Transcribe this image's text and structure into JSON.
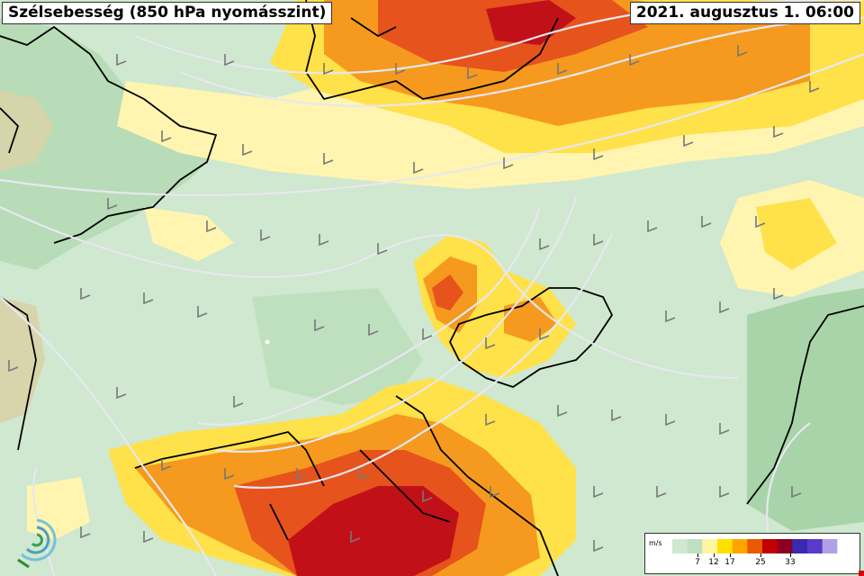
{
  "map": {
    "title": "Szélsebesség (850 hPa nyomásszint)",
    "datetime": "2021. augusztus 1. 06:00"
  },
  "legend": {
    "unit": "m/s",
    "ticks": [
      "7",
      "12",
      "17",
      "25",
      "33"
    ],
    "colors": [
      "#cfe8cf",
      "#bfe0bf",
      "#fff5a0",
      "#ffe000",
      "#ffa500",
      "#e85a00",
      "#c00000",
      "#8b0020",
      "#3a2ab0",
      "#5a3ac8",
      "#b0a0e8",
      "#ffffff"
    ]
  },
  "colors": {
    "land_green": "#a9d4a9",
    "light_green": "#cfe8cf",
    "sea_tan": "#d8d3a8",
    "pale_yellow": "#fff5b0",
    "yellow": "#ffe14a",
    "orange": "#f59a1e",
    "red_orange": "#e6531c",
    "dark_red": "#c21018",
    "border_black": "#000000",
    "isobar_white": "#e8e8f0"
  }
}
